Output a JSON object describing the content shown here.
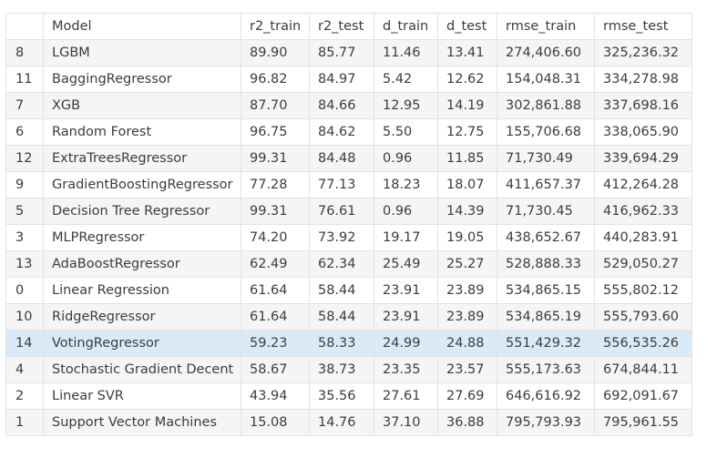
{
  "table": {
    "headers": [
      "",
      "Model",
      "r2_train",
      "r2_test",
      "d_train",
      "d_test",
      "rmse_train",
      "rmse_test"
    ],
    "highlighted_index": "14",
    "rows": [
      [
        "8",
        "LGBM",
        "89.90",
        "85.77",
        "11.46",
        "13.41",
        "274,406.60",
        "325,236.32"
      ],
      [
        "11",
        "BaggingRegressor",
        "96.82",
        "84.97",
        "5.42",
        "12.62",
        "154,048.31",
        "334,278.98"
      ],
      [
        "7",
        "XGB",
        "87.70",
        "84.66",
        "12.95",
        "14.19",
        "302,861.88",
        "337,698.16"
      ],
      [
        "6",
        "Random Forest",
        "96.75",
        "84.62",
        "5.50",
        "12.75",
        "155,706.68",
        "338,065.90"
      ],
      [
        "12",
        "ExtraTreesRegressor",
        "99.31",
        "84.48",
        "0.96",
        "11.85",
        "71,730.49",
        "339,694.29"
      ],
      [
        "9",
        "GradientBoostingRegressor",
        "77.28",
        "77.13",
        "18.23",
        "18.07",
        "411,657.37",
        "412,264.28"
      ],
      [
        "5",
        "Decision Tree Regressor",
        "99.31",
        "76.61",
        "0.96",
        "14.39",
        "71,730.45",
        "416,962.33"
      ],
      [
        "3",
        "MLPRegressor",
        "74.20",
        "73.92",
        "19.17",
        "19.05",
        "438,652.67",
        "440,283.91"
      ],
      [
        "13",
        "AdaBoostRegressor",
        "62.49",
        "62.34",
        "25.49",
        "25.27",
        "528,888.33",
        "529,050.27"
      ],
      [
        "0",
        "Linear Regression",
        "61.64",
        "58.44",
        "23.91",
        "23.89",
        "534,865.15",
        "555,802.12"
      ],
      [
        "10",
        "RidgeRegressor",
        "61.64",
        "58.44",
        "23.91",
        "23.89",
        "534,865.19",
        "555,793.60"
      ],
      [
        "14",
        "VotingRegressor",
        "59.23",
        "58.33",
        "24.99",
        "24.88",
        "551,429.32",
        "556,535.26"
      ],
      [
        "4",
        "Stochastic Gradient Decent",
        "58.67",
        "38.73",
        "23.35",
        "23.57",
        "555,173.63",
        "674,844.11"
      ],
      [
        "2",
        "Linear SVR",
        "43.94",
        "35.56",
        "27.61",
        "27.69",
        "646,616.92",
        "692,091.67"
      ],
      [
        "1",
        "Support Vector Machines",
        "15.08",
        "14.76",
        "37.10",
        "36.88",
        "795,793.93",
        "795,961.55"
      ]
    ]
  },
  "colors": {
    "header_bg": "#ffffff",
    "stripe_bg": "#f5f5f5",
    "highlight_bg": "#dbeaf7",
    "border": "#e3e3e3",
    "text": "#3c3c3c"
  }
}
